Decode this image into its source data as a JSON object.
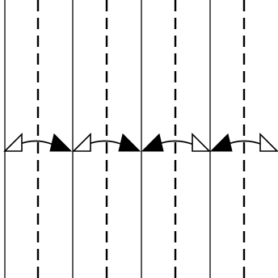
{
  "diagram": {
    "type": "fold-pattern",
    "panel_count": 8,
    "line_pattern": [
      "solid",
      "dashed",
      "solid",
      "dashed",
      "solid",
      "dashed",
      "solid",
      "dashed"
    ],
    "arrow_heads_left_to_right": [
      "hollow",
      "filled",
      "hollow",
      "filled",
      "filled",
      "hollow",
      "filled",
      "hollow"
    ],
    "colors": {
      "background": "#ffffff",
      "ink": "#000000",
      "hollow_fill": "#ffffff"
    }
  }
}
